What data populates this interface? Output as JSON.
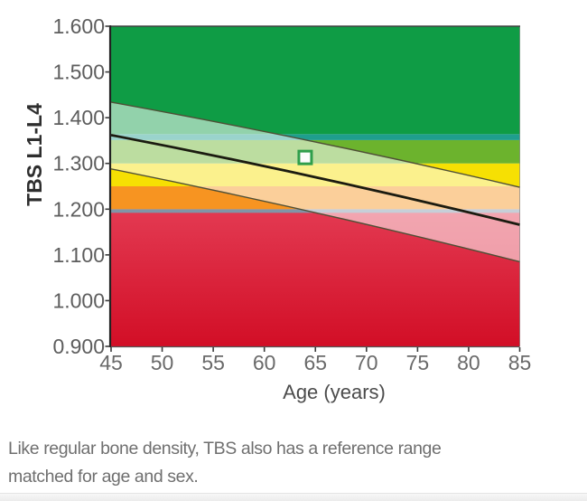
{
  "page": {
    "background": "#ffffff"
  },
  "chart_data": {
    "type": "area",
    "title": "",
    "xlabel": "Age (years)",
    "ylabel": "TBS L1-L4",
    "xlim": [
      45,
      85
    ],
    "ylim": [
      0.9,
      1.6
    ],
    "x_ticks": [
      45,
      50,
      55,
      60,
      65,
      70,
      75,
      80,
      85
    ],
    "y_ticks": [
      "1.600",
      "1.500",
      "1.400",
      "1.300",
      "1.200",
      "1.100",
      "1.000",
      "0.900"
    ],
    "grid": false,
    "legend": "none",
    "zones": [
      {
        "label": "degraded-red",
        "from": 0.9,
        "to": 1.2,
        "color_top": "#e33a52",
        "color_bottom": "#d20e26"
      },
      {
        "label": "threshold-strip-1.20",
        "from": 1.192,
        "to": 1.2,
        "color": "#8095a8"
      },
      {
        "label": "partially-degraded-orange",
        "from": 1.2,
        "to": 1.25,
        "color": "#f79421"
      },
      {
        "label": "partially-degraded-yellow",
        "from": 1.25,
        "to": 1.3,
        "color": "#f6e003"
      },
      {
        "label": "normal-light-green",
        "from": 1.3,
        "to": 1.351,
        "color": "#6cb32d"
      },
      {
        "label": "threshold-strip-1.35",
        "from": 1.351,
        "to": 1.364,
        "color": "#1f9e8e"
      },
      {
        "label": "normal-dark-green",
        "from": 1.364,
        "to": 1.6,
        "color": "#0f9c45"
      }
    ],
    "reference_band": {
      "x": [
        45,
        85
      ],
      "upper": [
        1.434,
        1.248
      ],
      "lower": [
        1.288,
        1.085
      ],
      "fill": "rgba(255,255,255,0.55)",
      "edge_color": "#4f4f36"
    },
    "mean_line": {
      "x": [
        45,
        85
      ],
      "y": [
        1.362,
        1.166
      ],
      "color": "#1b1b10"
    },
    "marker": {
      "x": 64,
      "y": 1.313,
      "shape": "square",
      "fill": "#fcfcfc",
      "border_color": "#2f9e4b"
    },
    "axis_colors": {
      "x_tick_label": "#6a6a6a",
      "y_tick_label": "#5d5d5d",
      "x_title": "#4c4c4c",
      "y_title": "#2e2e2e"
    }
  },
  "caption": {
    "lines": [
      "Like regular bone density, TBS also has a reference range",
      "matched for age and sex."
    ],
    "color": "#6f6f6f"
  }
}
